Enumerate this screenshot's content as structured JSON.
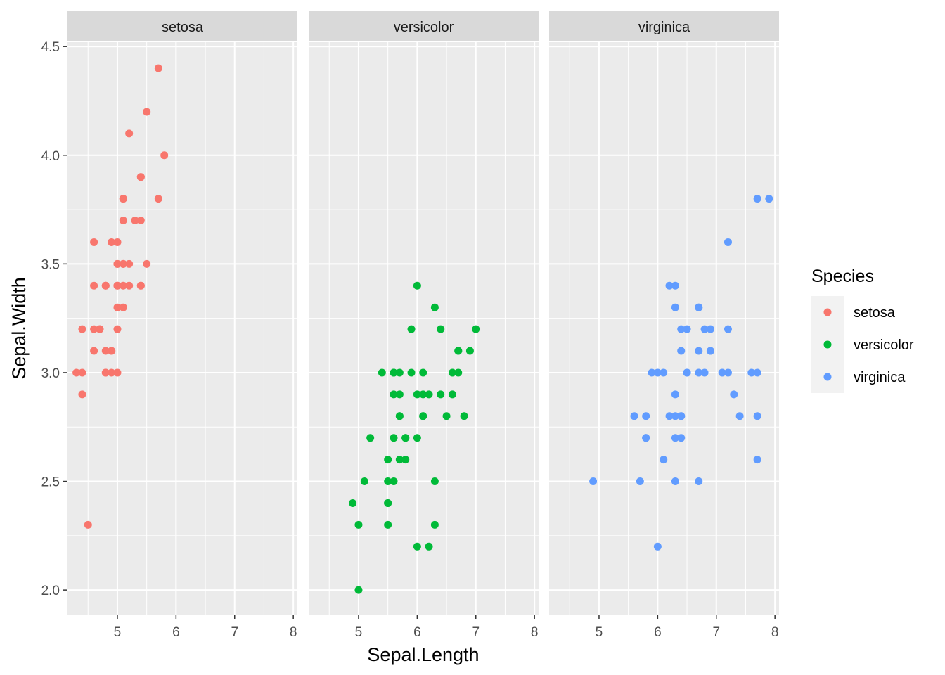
{
  "chart_data": {
    "type": "scatter",
    "title": "",
    "xlabel": "Sepal.Length",
    "ylabel": "Sepal.Width",
    "xlim": [
      4.149,
      8.07
    ],
    "ylim": [
      1.884,
      4.52
    ],
    "x_ticks": [
      5,
      6,
      7,
      8
    ],
    "y_ticks": [
      2.0,
      2.5,
      3.0,
      3.5,
      4.0,
      4.5
    ],
    "x_tick_labels": [
      "5",
      "6",
      "7",
      "8"
    ],
    "y_tick_labels": [
      "2.0",
      "2.5",
      "3.0",
      "3.5",
      "4.0",
      "4.5"
    ],
    "grid": true,
    "legend": {
      "title": "Species",
      "placement": "right",
      "entries": [
        "setosa",
        "versicolor",
        "virginica"
      ]
    },
    "facets": [
      {
        "name": "setosa",
        "color": "#F8766D",
        "points": [
          [
            5.1,
            3.5
          ],
          [
            4.9,
            3.0
          ],
          [
            4.7,
            3.2
          ],
          [
            4.6,
            3.1
          ],
          [
            5.0,
            3.6
          ],
          [
            5.4,
            3.9
          ],
          [
            4.6,
            3.4
          ],
          [
            5.0,
            3.4
          ],
          [
            4.4,
            2.9
          ],
          [
            4.9,
            3.1
          ],
          [
            5.4,
            3.7
          ],
          [
            4.8,
            3.4
          ],
          [
            4.8,
            3.0
          ],
          [
            4.3,
            3.0
          ],
          [
            5.8,
            4.0
          ],
          [
            5.7,
            4.4
          ],
          [
            5.4,
            3.9
          ],
          [
            5.1,
            3.5
          ],
          [
            5.7,
            3.8
          ],
          [
            5.1,
            3.8
          ],
          [
            5.4,
            3.4
          ],
          [
            5.1,
            3.7
          ],
          [
            4.6,
            3.6
          ],
          [
            5.1,
            3.3
          ],
          [
            4.8,
            3.4
          ],
          [
            5.0,
            3.0
          ],
          [
            5.0,
            3.4
          ],
          [
            5.2,
            3.5
          ],
          [
            5.2,
            3.4
          ],
          [
            4.7,
            3.2
          ],
          [
            4.8,
            3.1
          ],
          [
            5.4,
            3.4
          ],
          [
            5.2,
            4.1
          ],
          [
            5.5,
            4.2
          ],
          [
            4.9,
            3.1
          ],
          [
            5.0,
            3.2
          ],
          [
            5.5,
            3.5
          ],
          [
            4.9,
            3.6
          ],
          [
            4.4,
            3.0
          ],
          [
            5.1,
            3.4
          ],
          [
            5.0,
            3.5
          ],
          [
            4.5,
            2.3
          ],
          [
            4.4,
            3.2
          ],
          [
            5.0,
            3.5
          ],
          [
            5.1,
            3.8
          ],
          [
            4.8,
            3.0
          ],
          [
            5.1,
            3.8
          ],
          [
            4.6,
            3.2
          ],
          [
            5.3,
            3.7
          ],
          [
            5.0,
            3.3
          ]
        ]
      },
      {
        "name": "versicolor",
        "color": "#00BA38",
        "points": [
          [
            7.0,
            3.2
          ],
          [
            6.4,
            3.2
          ],
          [
            6.9,
            3.1
          ],
          [
            5.5,
            2.3
          ],
          [
            6.5,
            2.8
          ],
          [
            5.7,
            2.8
          ],
          [
            6.3,
            3.3
          ],
          [
            4.9,
            2.4
          ],
          [
            6.6,
            2.9
          ],
          [
            5.2,
            2.7
          ],
          [
            5.0,
            2.0
          ],
          [
            5.9,
            3.0
          ],
          [
            6.0,
            2.2
          ],
          [
            6.1,
            2.9
          ],
          [
            5.6,
            2.9
          ],
          [
            6.7,
            3.1
          ],
          [
            5.6,
            3.0
          ],
          [
            5.8,
            2.7
          ],
          [
            6.2,
            2.2
          ],
          [
            5.6,
            2.5
          ],
          [
            5.9,
            3.2
          ],
          [
            6.1,
            2.8
          ],
          [
            6.3,
            2.5
          ],
          [
            6.1,
            2.8
          ],
          [
            6.4,
            2.9
          ],
          [
            6.6,
            3.0
          ],
          [
            6.8,
            2.8
          ],
          [
            6.7,
            3.0
          ],
          [
            6.0,
            2.9
          ],
          [
            5.7,
            2.6
          ],
          [
            5.5,
            2.4
          ],
          [
            5.5,
            2.4
          ],
          [
            5.8,
            2.7
          ],
          [
            6.0,
            2.7
          ],
          [
            5.4,
            3.0
          ],
          [
            6.0,
            3.4
          ],
          [
            6.7,
            3.1
          ],
          [
            6.3,
            2.3
          ],
          [
            5.6,
            3.0
          ],
          [
            5.5,
            2.5
          ],
          [
            5.5,
            2.6
          ],
          [
            6.1,
            3.0
          ],
          [
            5.8,
            2.6
          ],
          [
            5.0,
            2.3
          ],
          [
            5.6,
            2.7
          ],
          [
            5.7,
            3.0
          ],
          [
            5.7,
            2.9
          ],
          [
            6.2,
            2.9
          ],
          [
            5.1,
            2.5
          ],
          [
            5.7,
            2.8
          ]
        ]
      },
      {
        "name": "virginica",
        "color": "#619CFF",
        "points": [
          [
            6.3,
            3.3
          ],
          [
            5.8,
            2.7
          ],
          [
            7.1,
            3.0
          ],
          [
            6.3,
            2.9
          ],
          [
            6.5,
            3.0
          ],
          [
            7.6,
            3.0
          ],
          [
            4.9,
            2.5
          ],
          [
            7.3,
            2.9
          ],
          [
            6.7,
            2.5
          ],
          [
            7.2,
            3.6
          ],
          [
            6.5,
            3.2
          ],
          [
            6.4,
            2.7
          ],
          [
            6.8,
            3.0
          ],
          [
            5.7,
            2.5
          ],
          [
            5.8,
            2.8
          ],
          [
            6.4,
            3.2
          ],
          [
            6.5,
            3.0
          ],
          [
            7.7,
            3.8
          ],
          [
            7.7,
            2.6
          ],
          [
            6.0,
            2.2
          ],
          [
            6.9,
            3.2
          ],
          [
            5.6,
            2.8
          ],
          [
            7.7,
            2.8
          ],
          [
            6.3,
            2.7
          ],
          [
            6.7,
            3.3
          ],
          [
            7.2,
            3.2
          ],
          [
            6.2,
            2.8
          ],
          [
            6.1,
            3.0
          ],
          [
            6.4,
            2.8
          ],
          [
            7.2,
            3.0
          ],
          [
            7.4,
            2.8
          ],
          [
            7.9,
            3.8
          ],
          [
            6.4,
            2.8
          ],
          [
            6.3,
            2.8
          ],
          [
            6.1,
            2.6
          ],
          [
            7.7,
            3.0
          ],
          [
            6.3,
            3.4
          ],
          [
            6.4,
            3.1
          ],
          [
            6.0,
            3.0
          ],
          [
            6.9,
            3.1
          ],
          [
            6.7,
            3.1
          ],
          [
            6.9,
            3.1
          ],
          [
            5.8,
            2.7
          ],
          [
            6.8,
            3.2
          ],
          [
            6.7,
            3.3
          ],
          [
            6.7,
            3.0
          ],
          [
            6.3,
            2.5
          ],
          [
            6.5,
            3.0
          ],
          [
            6.2,
            3.4
          ],
          [
            5.9,
            3.0
          ]
        ]
      }
    ]
  }
}
